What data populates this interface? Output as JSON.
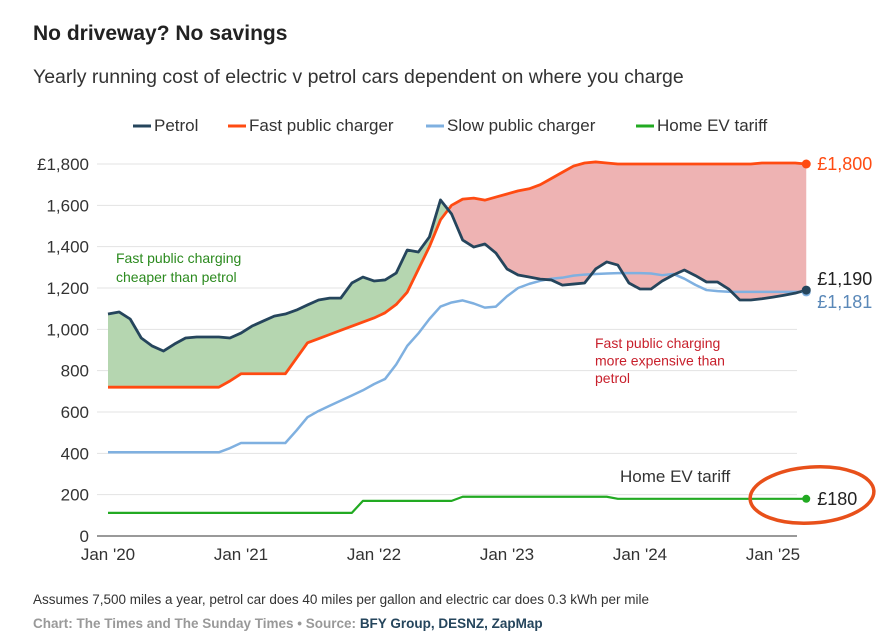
{
  "header": {
    "title": "No driveway? No savings",
    "subtitle": "Yearly running cost of electric v petrol cars dependent on where you charge"
  },
  "footer": {
    "note": "Assumes 7,500 miles a year, petrol car does 40 miles per gallon and electric car does 0.3 kWh per mile",
    "credit_prefix": "Chart: The Times and The Sunday Times • Source: ",
    "credit_sources": "BFY Group, DESNZ, ZapMap"
  },
  "chart_data": {
    "type": "line",
    "title": "No driveway? No savings",
    "subtitle": "Yearly running cost of electric v petrol cars dependent on where you charge",
    "xlabel": "",
    "ylabel": "",
    "ylim": [
      0,
      1800
    ],
    "yticks": [
      0,
      200,
      400,
      600,
      800,
      1000,
      1200,
      1400,
      1600,
      1800
    ],
    "ytick_labels": [
      "0",
      "200",
      "400",
      "600",
      "800",
      "1,000",
      "1,200",
      "1,400",
      "1,600",
      "£1,800"
    ],
    "xticks": [
      "Jan '20",
      "Jan '21",
      "Jan '22",
      "Jan '23",
      "Jan '24",
      "Jan '25"
    ],
    "x_start": "Jan 2020",
    "x_step": "month",
    "grid": true,
    "legend_position": "top",
    "colors": {
      "petrol": "#25455c",
      "fast": "#ff4b12",
      "slow": "#7fb0e0",
      "home": "#22aa22",
      "cheaper_fill": "#b5d6b0",
      "expensive_fill": "#eeb3b3",
      "cheaper_text": "#2b8a1e",
      "expensive_text": "#c8202c",
      "highlight_ellipse": "#e8501a"
    },
    "series": [
      {
        "name": "Petrol",
        "key": "petrol",
        "values": [
          1074,
          1084,
          1050,
          958,
          919,
          895,
          929,
          958,
          963,
          963,
          963,
          958,
          982,
          1016,
          1040,
          1064,
          1074,
          1093,
          1118,
          1142,
          1151,
          1151,
          1224,
          1253,
          1234,
          1239,
          1272,
          1384,
          1374,
          1447,
          1626,
          1558,
          1432,
          1398,
          1413,
          1369,
          1292,
          1263,
          1253,
          1243,
          1239,
          1214,
          1219,
          1224,
          1292,
          1326,
          1311,
          1224,
          1195,
          1195,
          1234,
          1263,
          1287,
          1260,
          1229,
          1229,
          1195,
          1142,
          1142,
          1148,
          1156,
          1165,
          1175,
          1190
        ],
        "end_label": "£1,190"
      },
      {
        "name": "Fast public charger",
        "key": "fast",
        "values": [
          720,
          720,
          720,
          720,
          720,
          720,
          720,
          720,
          720,
          720,
          720,
          750,
          785,
          785,
          785,
          785,
          785,
          860,
          935,
          955,
          975,
          995,
          1015,
          1035,
          1055,
          1080,
          1120,
          1180,
          1290,
          1400,
          1530,
          1600,
          1630,
          1635,
          1625,
          1640,
          1655,
          1670,
          1680,
          1700,
          1730,
          1760,
          1790,
          1805,
          1810,
          1805,
          1800,
          1800,
          1800,
          1800,
          1800,
          1800,
          1800,
          1800,
          1800,
          1800,
          1800,
          1800,
          1800,
          1805,
          1805,
          1805,
          1805,
          1800
        ],
        "end_label": "£1,800"
      },
      {
        "name": "Slow public charger",
        "key": "slow",
        "values": [
          405,
          405,
          405,
          405,
          405,
          405,
          405,
          405,
          405,
          405,
          405,
          425,
          450,
          450,
          450,
          450,
          450,
          510,
          575,
          605,
          630,
          655,
          680,
          705,
          735,
          760,
          830,
          920,
          980,
          1050,
          1110,
          1130,
          1140,
          1125,
          1105,
          1110,
          1160,
          1200,
          1220,
          1235,
          1245,
          1250,
          1260,
          1265,
          1268,
          1270,
          1272,
          1272,
          1272,
          1270,
          1262,
          1268,
          1245,
          1215,
          1190,
          1185,
          1182,
          1181,
          1181,
          1181,
          1181,
          1181,
          1181,
          1181
        ],
        "end_label": "£1,181"
      },
      {
        "name": "Home EV tariff",
        "key": "home",
        "values": [
          112,
          112,
          112,
          112,
          112,
          112,
          112,
          112,
          112,
          112,
          112,
          112,
          112,
          112,
          112,
          112,
          112,
          112,
          112,
          112,
          112,
          112,
          112,
          170,
          170,
          170,
          170,
          170,
          170,
          170,
          170,
          170,
          190,
          190,
          190,
          190,
          190,
          190,
          190,
          190,
          190,
          190,
          190,
          190,
          190,
          190,
          180,
          180,
          180,
          180,
          180,
          180,
          180,
          180,
          180,
          180,
          180,
          180,
          180,
          180,
          180,
          180,
          180,
          180
        ],
        "end_label": "£180"
      }
    ],
    "annotations": [
      {
        "text_lines": [
          "Fast public charging",
          "cheaper than petrol"
        ],
        "kind": "cheaper"
      },
      {
        "text_lines": [
          "Fast public charging",
          "more expensive than",
          "petrol"
        ],
        "kind": "expensive"
      },
      {
        "text_lines": [
          "Home EV tariff"
        ],
        "kind": "home"
      }
    ]
  }
}
